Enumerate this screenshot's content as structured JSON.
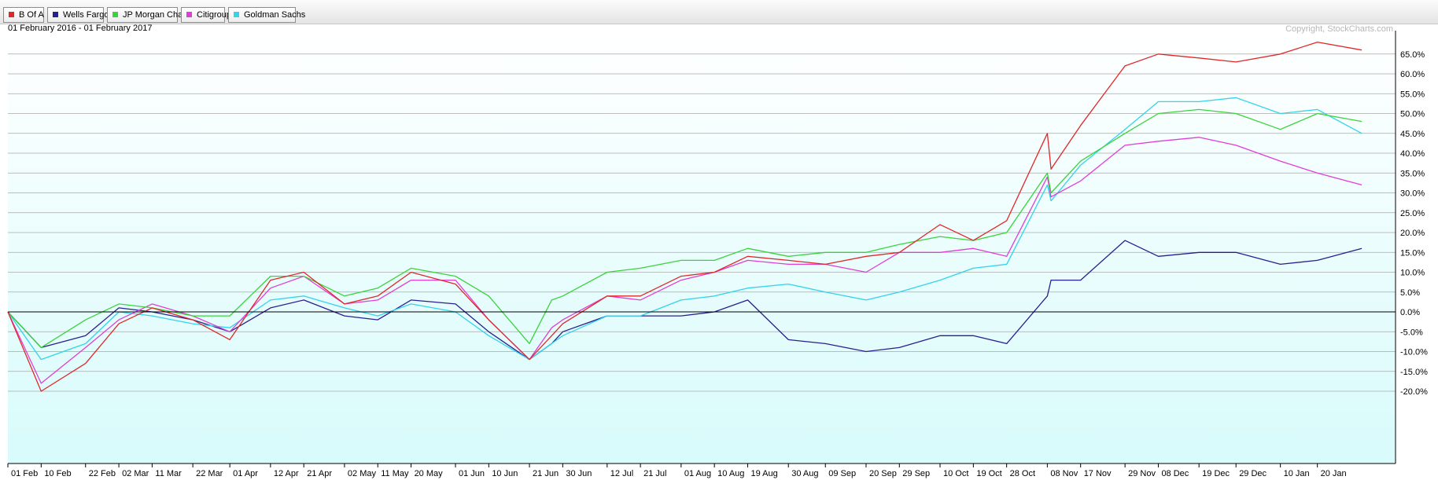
{
  "legend": [
    {
      "name": "B Of A",
      "color": "#e0282a"
    },
    {
      "name": "Wells Fargo",
      "color": "#2a1f8f"
    },
    {
      "name": "JP Morgan Chase",
      "color": "#3bd33b"
    },
    {
      "name": "Citigroup",
      "color": "#e03ed6"
    },
    {
      "name": "Goldman Sachs",
      "color": "#33d3ea"
    }
  ],
  "chart": {
    "date_range": "01 February 2016 - 01 February 2017",
    "copyright": "Copyright, StockCharts.com"
  },
  "chart_data": {
    "type": "line",
    "x_labels": [
      "01 Feb",
      "10 Feb",
      "22 Feb",
      "02 Mar",
      "11 Mar",
      "22 Mar",
      "01 Apr",
      "12 Apr",
      "21 Apr",
      "02 May",
      "11 May",
      "20 May",
      "01 Jun",
      "10 Jun",
      "21 Jun",
      "30 Jun",
      "12 Jul",
      "21 Jul",
      "01 Aug",
      "10 Aug",
      "19 Aug",
      "30 Aug",
      "09 Sep",
      "20 Sep",
      "29 Sep",
      "10 Oct",
      "19 Oct",
      "28 Oct",
      "08 Nov",
      "17 Nov",
      "29 Nov",
      "08 Dec",
      "19 Dec",
      "29 Dec",
      "10 Jan",
      "20 Jan"
    ],
    "y_ticks": [
      "65.0%",
      "60.0%",
      "55.0%",
      "50.0%",
      "45.0%",
      "40.0%",
      "35.0%",
      "30.0%",
      "25.0%",
      "20.0%",
      "15.0%",
      "10.0%",
      "5.0%",
      "0.0%",
      "-5.0%",
      "-10.0%",
      "-15.0%",
      "-20.0%"
    ],
    "ylim": [
      -21,
      70
    ],
    "y_unit": "%",
    "grid": true,
    "legend_position": "top-left",
    "x": [
      "2016-02-01",
      "2016-02-10",
      "2016-02-22",
      "2016-03-02",
      "2016-03-11",
      "2016-03-22",
      "2016-04-01",
      "2016-04-12",
      "2016-04-21",
      "2016-05-02",
      "2016-05-11",
      "2016-05-20",
      "2016-06-01",
      "2016-06-10",
      "2016-06-21",
      "2016-06-27",
      "2016-06-30",
      "2016-07-12",
      "2016-07-21",
      "2016-08-01",
      "2016-08-10",
      "2016-08-19",
      "2016-08-30",
      "2016-09-09",
      "2016-09-20",
      "2016-09-29",
      "2016-10-10",
      "2016-10-19",
      "2016-10-28",
      "2016-11-08",
      "2016-11-09",
      "2016-11-17",
      "2016-11-29",
      "2016-12-08",
      "2016-12-19",
      "2016-12-29",
      "2017-01-10",
      "2017-01-20",
      "2017-02-01"
    ],
    "series": [
      {
        "name": "B Of A",
        "color": "#e0282a",
        "values": [
          0,
          -20,
          -13,
          -3,
          1,
          -2,
          -7,
          8,
          10,
          2,
          4,
          10,
          7,
          -2,
          -12,
          -6,
          -3,
          4,
          4,
          9,
          10,
          14,
          13,
          12,
          14,
          15,
          22,
          18,
          23,
          45,
          36,
          47,
          62,
          65,
          64,
          63,
          65,
          68,
          66
        ]
      },
      {
        "name": "Wells Fargo",
        "color": "#2a1f8f",
        "values": [
          0,
          -9,
          -6,
          1,
          0,
          -2,
          -5,
          1,
          3,
          -1,
          -2,
          3,
          2,
          -5,
          -12,
          -8,
          -5,
          -1,
          -1,
          -1,
          0,
          3,
          -7,
          -8,
          -10,
          -9,
          -6,
          -6,
          -8,
          4,
          8,
          8,
          18,
          14,
          15,
          15,
          12,
          13,
          16
        ]
      },
      {
        "name": "JP Morgan Chase",
        "color": "#3bd33b",
        "values": [
          0,
          -9,
          -2,
          2,
          1,
          -1,
          -1,
          9,
          9,
          4,
          6,
          11,
          9,
          4,
          -8,
          3,
          4,
          10,
          11,
          13,
          13,
          16,
          14,
          15,
          15,
          17,
          19,
          18,
          20,
          35,
          30,
          38,
          45,
          50,
          51,
          50,
          46,
          50,
          48
        ]
      },
      {
        "name": "Citigroup",
        "color": "#e03ed6",
        "values": [
          0,
          -18,
          -9,
          -2,
          2,
          -1,
          -5,
          6,
          9,
          2,
          3,
          8,
          8,
          -2,
          -12,
          -4,
          -2,
          4,
          3,
          8,
          10,
          13,
          12,
          12,
          10,
          15,
          15,
          16,
          14,
          34,
          29,
          33,
          42,
          43,
          44,
          42,
          38,
          35,
          32
        ]
      },
      {
        "name": "Goldman Sachs",
        "color": "#33d3ea",
        "values": [
          0,
          -12,
          -8,
          0,
          -1,
          -3,
          -4,
          3,
          4,
          1,
          -1,
          2,
          0,
          -6,
          -12,
          -8,
          -6,
          -1,
          -1,
          3,
          4,
          6,
          7,
          5,
          3,
          5,
          8,
          11,
          12,
          32,
          28,
          37,
          46,
          53,
          53,
          54,
          50,
          51,
          45
        ]
      }
    ]
  }
}
